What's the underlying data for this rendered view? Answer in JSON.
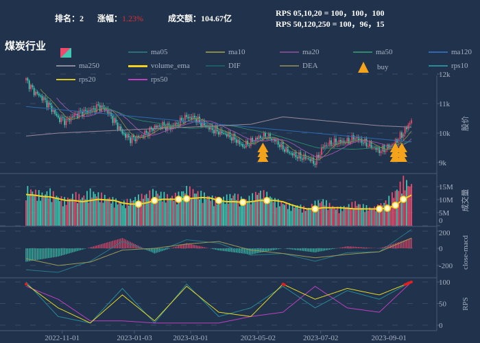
{
  "header": {
    "rank_label": "排名：",
    "rank": "2",
    "change_label": "涨幅：",
    "change": "1.23%",
    "amount_label": "成交额：",
    "amount": "104.67亿",
    "rps_line1": "RPS 05,10,20 = 100，100，100",
    "rps_line2": "RPS 50,120,250 = 100，96，15"
  },
  "title": "煤炭行业",
  "legend": [
    {
      "label": "",
      "color": "#ef4a6b",
      "icon": "candle-icon"
    },
    {
      "label": "ma05",
      "color": "#2b6f7a"
    },
    {
      "label": "ma10",
      "color": "#8a8a4a"
    },
    {
      "label": "ma20",
      "color": "#7a4a8a"
    },
    {
      "label": "ma50",
      "color": "#2f8a6a"
    },
    {
      "label": "ma120",
      "color": "#2f6ab0"
    },
    {
      "label": "ma250",
      "color": "#8a8a99"
    },
    {
      "label": "volume_ema",
      "color": "#f5d21f"
    },
    {
      "label": "DIF",
      "color": "#1f5a6a"
    },
    {
      "label": "DEA",
      "color": "#7a7a55"
    },
    {
      "label": "buy",
      "color": "#f5a31a",
      "icon": "buy-arrow-icon"
    },
    {
      "label": "rps10",
      "color": "#2a8a98"
    },
    {
      "label": "rps20",
      "color": "#d8c820"
    },
    {
      "label": "rps50",
      "color": "#c040c0"
    }
  ],
  "chart_data": {
    "type": "candlestick",
    "colors": {
      "up": "#ef4a6b",
      "down": "#3fc9b0"
    },
    "x_ticks": [
      {
        "label": "2022-11-01",
        "index": 4.5
      },
      {
        "label": "2023-01-03",
        "index": 13.5
      },
      {
        "label": "2023-03-01",
        "index": 20.5
      },
      {
        "label": "2023-05-02",
        "index": 28.9
      },
      {
        "label": "2023-07-02",
        "index": 36.7
      },
      {
        "label": "2023-09-01",
        "index": 45.2
      }
    ],
    "price": {
      "ylabel": "股价",
      "ticks": [
        "9k",
        "10k",
        "11k",
        "12k"
      ],
      "ylim": [
        8700,
        12000
      ],
      "close": [
        11800,
        11400,
        11200,
        10900,
        10500,
        10400,
        10600,
        10700,
        10750,
        10900,
        10800,
        10400,
        10000,
        9800,
        9850,
        10000,
        10200,
        10250,
        10200,
        10350,
        10550,
        10500,
        10300,
        10150,
        10050,
        9950,
        9800,
        9550,
        9700,
        9850,
        9900,
        9750,
        9500,
        9300,
        9200,
        9150,
        9000,
        9550,
        9650,
        9700,
        9700,
        9850,
        9700,
        9550,
        9400,
        9500,
        9700,
        10000,
        10450
      ],
      "ma120": [
        10900,
        10800,
        10700,
        10600,
        10500,
        10400,
        10300,
        10200,
        10100,
        10000,
        9900,
        9800,
        9700
      ],
      "ma250": [
        9900,
        10000,
        10050,
        10100,
        10150,
        10200,
        10250,
        10300,
        10550,
        10450,
        10350,
        10250,
        10200
      ],
      "buy_index": [
        29.5,
        46,
        46.8
      ]
    },
    "volume": {
      "ylabel": "成交量",
      "ticks": [
        "0",
        "5M",
        "10M",
        "15M"
      ],
      "ylim": [
        0,
        18
      ],
      "values": [
        13,
        12,
        11,
        12,
        10,
        9,
        11,
        10,
        12,
        11,
        10,
        9,
        8,
        9,
        10,
        11,
        12,
        11,
        10,
        11,
        13,
        12,
        11,
        10,
        9,
        10,
        11,
        9,
        10,
        12,
        11,
        9,
        8,
        7,
        7,
        6,
        8,
        9,
        7,
        6,
        7,
        8,
        7,
        6,
        7,
        9,
        12,
        16,
        14
      ],
      "ema_markers": [
        14,
        16,
        19,
        20,
        24,
        27,
        30,
        36,
        44,
        45,
        46,
        47
      ]
    },
    "macd": {
      "ylabel": "close-macd",
      "ticks": [
        "-200",
        "0",
        "200"
      ],
      "ylim": [
        -300,
        250
      ],
      "dif": [
        -250,
        -280,
        -150,
        80,
        -50,
        100,
        60,
        -80,
        -60,
        -150,
        -50,
        -40,
        220
      ],
      "dea": [
        -120,
        -200,
        -160,
        -20,
        0,
        50,
        80,
        -20,
        -60,
        -110,
        -70,
        -40,
        120
      ]
    },
    "rps": {
      "ylabel": "RPS",
      "ticks": [
        "0",
        "50",
        "100"
      ],
      "ylim": [
        -5,
        110
      ],
      "rps10": [
        100,
        20,
        5,
        85,
        5,
        95,
        20,
        40,
        90,
        40,
        80,
        60,
        100
      ],
      "rps20": [
        95,
        40,
        5,
        70,
        10,
        90,
        30,
        20,
        95,
        60,
        85,
        70,
        100
      ],
      "rps50": [
        90,
        60,
        10,
        10,
        5,
        5,
        5,
        20,
        30,
        90,
        40,
        30,
        100
      ]
    }
  }
}
